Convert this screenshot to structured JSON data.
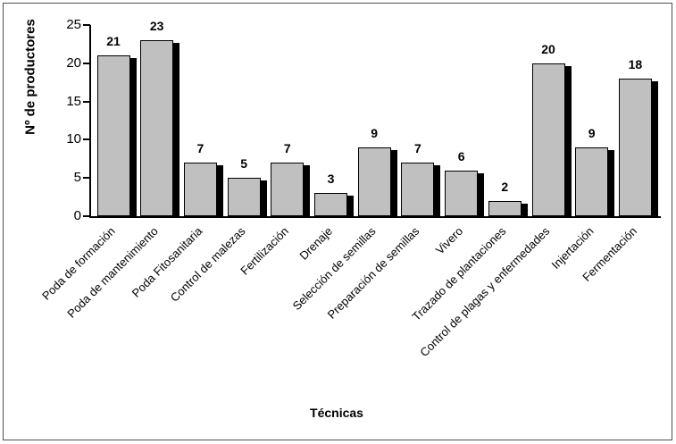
{
  "chart_data": {
    "type": "bar",
    "title": "",
    "xlabel": "Técnicas",
    "ylabel": "Nº de productores",
    "categories": [
      "Poda de formación",
      "Poda de mantenimiento",
      "Poda Fitosanitaria",
      "Control de malezas",
      "Fertilización",
      "Drenaje",
      "Selección de semillas",
      "Preparación de semillas",
      "Vivero",
      "Trazado de plantaciones",
      "Control de plagas y enfermedades",
      "Injertación",
      "Fermentación"
    ],
    "values": [
      21,
      23,
      7,
      5,
      7,
      3,
      9,
      7,
      6,
      2,
      20,
      9,
      18
    ],
    "data_labels": [
      "21",
      "23",
      "7",
      "5",
      "7",
      "3",
      "9",
      "7",
      "6",
      "2",
      "20",
      "9",
      "18"
    ],
    "ylim": [
      0,
      25
    ],
    "yticks": [
      0,
      5,
      10,
      15,
      20,
      25
    ],
    "grid": false,
    "legend": null,
    "tick_label_rotation_deg": 45,
    "colors": {
      "bar_fill": "#c0c0c0",
      "bar_border": "#000000",
      "bar_shadow": "#000000",
      "axis": "#000000",
      "text": "#000000",
      "background": "#ffffff",
      "outer_border": "#4f4f4f"
    }
  }
}
